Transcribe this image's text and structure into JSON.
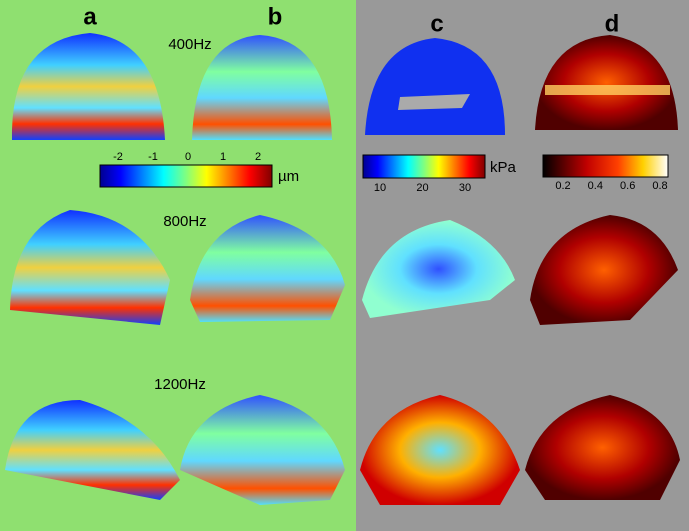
{
  "columns": [
    "a",
    "b",
    "c",
    "d"
  ],
  "rows": [
    "400Hz",
    "800Hz",
    "1200Hz"
  ],
  "colorbars": [
    {
      "ticks": [
        "-2",
        "-1",
        "0",
        "1",
        "2"
      ],
      "unit": "µm"
    },
    {
      "ticks": [
        "10",
        "20",
        "30"
      ],
      "unit": "kPa"
    },
    {
      "ticks": [
        "0.2",
        "0.4",
        "0.6",
        "0.8"
      ]
    }
  ]
}
